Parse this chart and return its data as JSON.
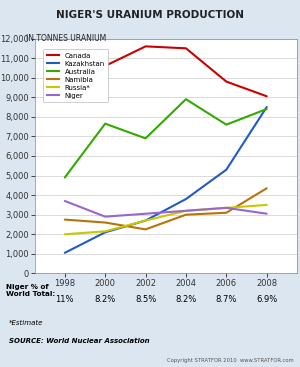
{
  "title": "NIGER'S URANIUM PRODUCTION",
  "ylabel": "IN TONNES URANIUM",
  "years": [
    1998,
    2000,
    2002,
    2004,
    2006,
    2008
  ],
  "series": {
    "Canada": [
      10900,
      10600,
      11600,
      11500,
      9800,
      9050
    ],
    "Kazakhstan": [
      1050,
      2100,
      2700,
      3800,
      5300,
      8500
    ],
    "Australia": [
      4900,
      7650,
      6900,
      8900,
      7600,
      8400
    ],
    "Namibia": [
      2750,
      2600,
      2250,
      3000,
      3100,
      4350
    ],
    "Russia*": [
      2000,
      2150,
      2700,
      3200,
      3350,
      3500
    ],
    "Niger": [
      3700,
      2900,
      3050,
      3200,
      3350,
      3050
    ]
  },
  "colors": {
    "Canada": "#cc0000",
    "Kazakhstan": "#1f5ac8",
    "Australia": "#33aa00",
    "Namibia": "#b8720a",
    "Russia*": "#c8c800",
    "Niger": "#9966cc"
  },
  "ylim": [
    0,
    12000
  ],
  "yticks": [
    0,
    1000,
    2000,
    3000,
    4000,
    5000,
    6000,
    7000,
    8000,
    9000,
    10000,
    11000,
    12000
  ],
  "niger_pct": [
    "11%",
    "8.2%",
    "8.5%",
    "8.2%",
    "8.7%",
    "6.9%"
  ],
  "table_header": "Niger % of\nWorld Total:",
  "footnote_italic": "*Estimate",
  "footnote_bold": "SOURCE: World Nuclear Association",
  "copyright": "Copyright STRATFOR 2010  www.STRATFOR.com",
  "bg_color": "#dce6f0",
  "table_bg": "#aec8e0",
  "plot_bg": "#ffffff"
}
